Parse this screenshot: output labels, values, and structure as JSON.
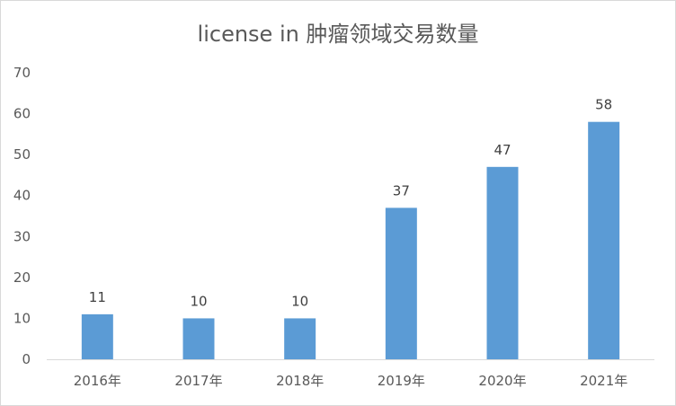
{
  "chart_data": {
    "type": "bar",
    "title": "license in 肿瘤领域交易数量",
    "xlabel": "",
    "ylabel": "",
    "categories": [
      "2016年",
      "2017年",
      "2018年",
      "2019年",
      "2020年",
      "2021年"
    ],
    "values": [
      11,
      10,
      10,
      37,
      47,
      58
    ],
    "ylim": [
      0,
      70
    ],
    "yticks": [
      0,
      10,
      20,
      30,
      40,
      50,
      60,
      70
    ],
    "grid": false,
    "legend": "none",
    "data_labels": true,
    "bar_color": "#5b9bd5"
  }
}
